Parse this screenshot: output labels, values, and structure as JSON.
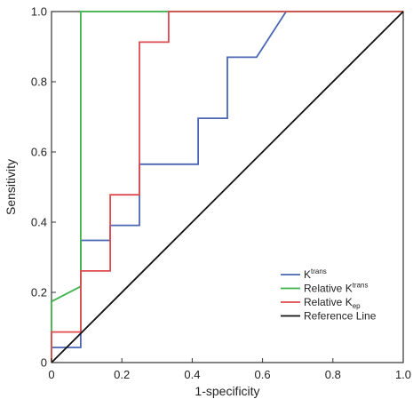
{
  "chart_data": {
    "type": "line",
    "title": "",
    "xlabel": "1-specificity",
    "ylabel": "Sensitivity",
    "xlim": [
      0,
      1
    ],
    "ylim": [
      0,
      1
    ],
    "x_ticks": [
      "0",
      "0.2",
      "0.4",
      "0.6",
      "0.8",
      "1.0"
    ],
    "y_ticks": [
      "0",
      "0.2",
      "0.4",
      "0.6",
      "0.8",
      "1.0"
    ],
    "grid": false,
    "legend_position": "bottom-right",
    "series": [
      {
        "legend": {
          "base": "K",
          "sup": "trans",
          "sub": ""
        },
        "color": "#4a66b4",
        "points": [
          [
            0,
            0
          ],
          [
            0,
            0.043
          ],
          [
            0.083,
            0.043
          ],
          [
            0.083,
            0.348
          ],
          [
            0.167,
            0.348
          ],
          [
            0.167,
            0.391
          ],
          [
            0.25,
            0.391
          ],
          [
            0.25,
            0.565
          ],
          [
            0.417,
            0.565
          ],
          [
            0.417,
            0.696
          ],
          [
            0.5,
            0.696
          ],
          [
            0.5,
            0.87
          ],
          [
            0.583,
            0.87
          ],
          [
            0.667,
            1.0
          ],
          [
            1.0,
            1.0
          ]
        ]
      },
      {
        "legend": {
          "base": "Relative K",
          "sup": "trans",
          "sub": ""
        },
        "color": "#3cb44b",
        "points": [
          [
            0,
            0
          ],
          [
            0,
            0.174
          ],
          [
            0.083,
            0.217
          ],
          [
            0.083,
            1.0
          ],
          [
            1.0,
            1.0
          ]
        ]
      },
      {
        "legend": {
          "base": "Relative K",
          "sup": "",
          "sub": "ep"
        },
        "color": "#e04a4f",
        "points": [
          [
            0,
            0
          ],
          [
            0,
            0.087
          ],
          [
            0.083,
            0.087
          ],
          [
            0.083,
            0.261
          ],
          [
            0.167,
            0.261
          ],
          [
            0.167,
            0.478
          ],
          [
            0.25,
            0.478
          ],
          [
            0.25,
            0.913
          ],
          [
            0.333,
            0.913
          ],
          [
            0.333,
            1.0
          ],
          [
            1.0,
            1.0
          ]
        ]
      },
      {
        "legend": {
          "base": "Reference Line",
          "sup": "",
          "sub": ""
        },
        "color": "#111111",
        "points": [
          [
            0,
            0
          ],
          [
            1,
            1
          ]
        ]
      }
    ]
  }
}
